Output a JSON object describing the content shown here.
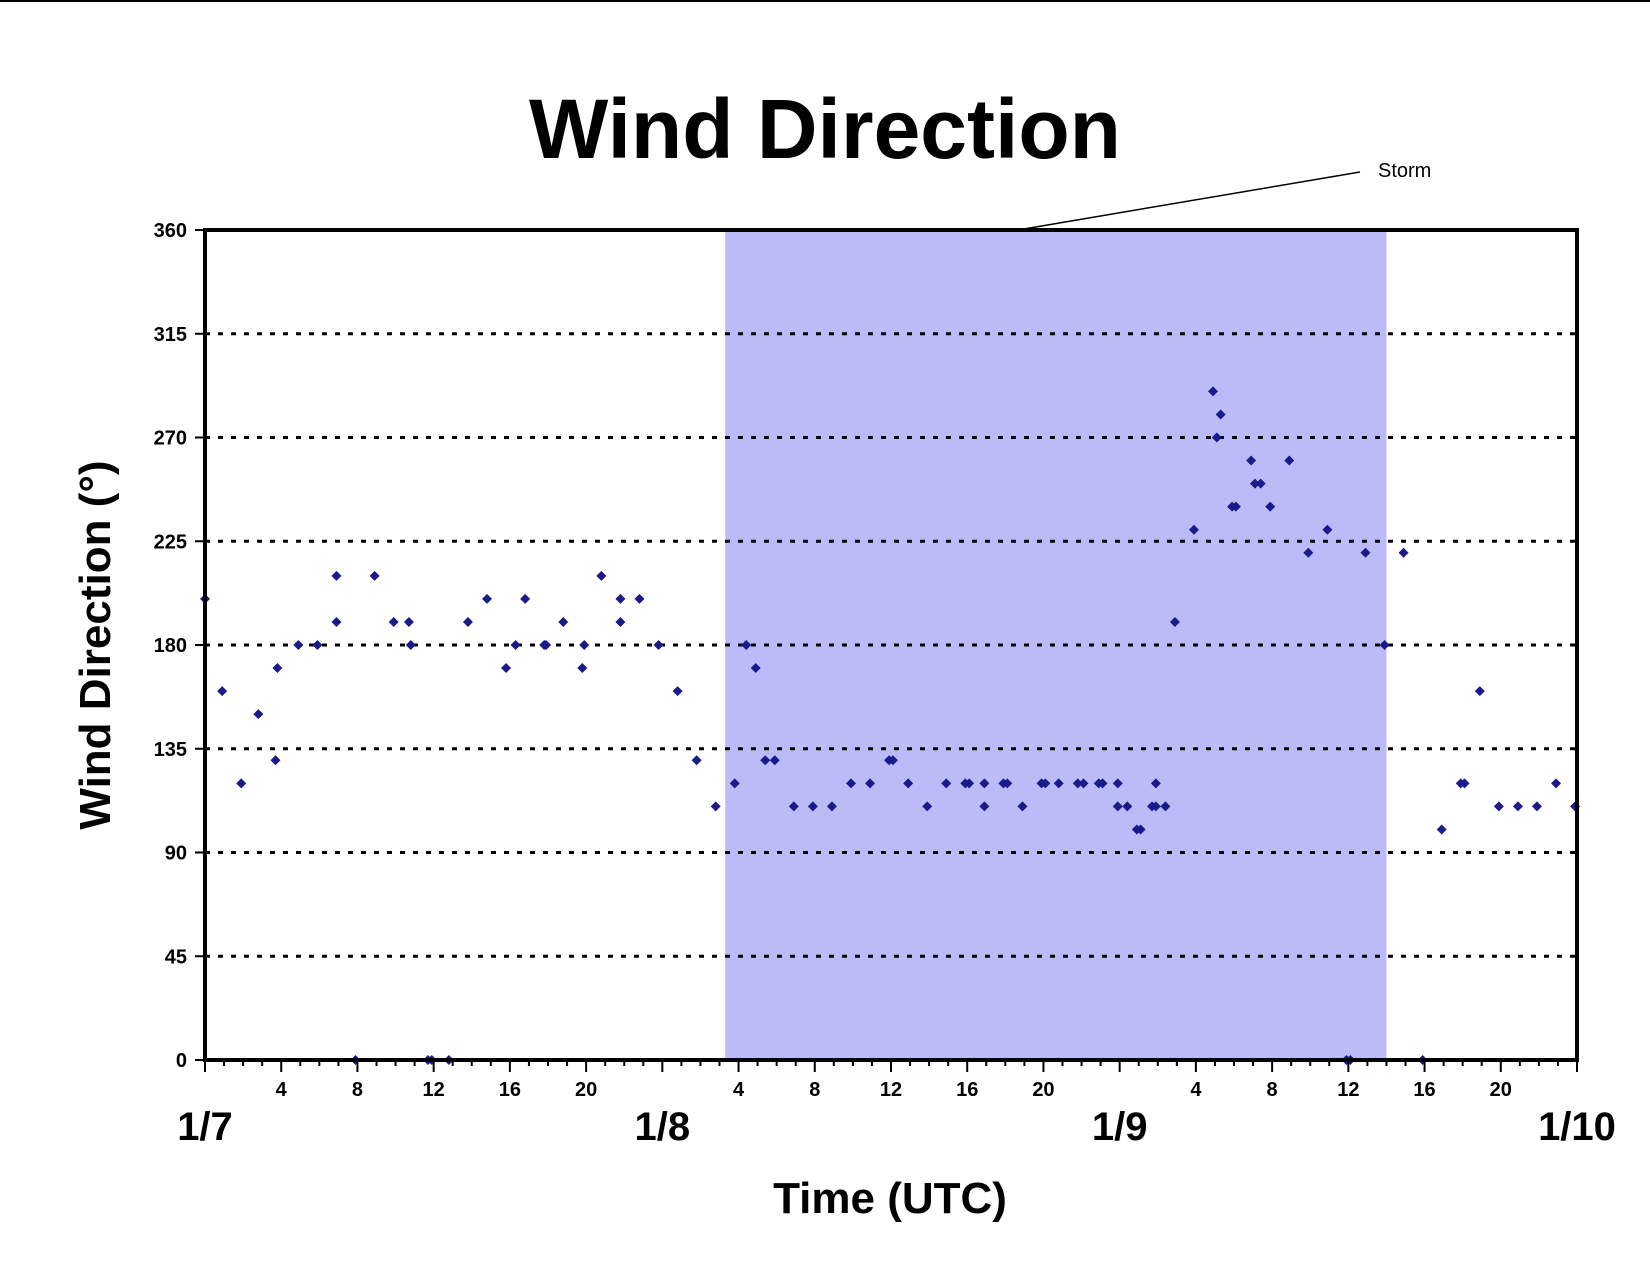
{
  "chart_data": {
    "type": "scatter",
    "title": "Wind Direction",
    "xlabel": "Time (UTC)",
    "ylabel": "Wind Direction (°)",
    "ylim": [
      0,
      360
    ],
    "xlim_hours": [
      0,
      72
    ],
    "y_ticks": [
      "0",
      "45",
      "90",
      "135",
      "180",
      "225",
      "270",
      "315",
      "360"
    ],
    "x_hour_ticks": [
      "4",
      "8",
      "12",
      "16",
      "20",
      "4",
      "8",
      "12",
      "16",
      "20",
      "4",
      "8",
      "12",
      "16",
      "20"
    ],
    "x_day_labels": [
      "1/7",
      "1/8",
      "1/9",
      "1/10"
    ],
    "grid": "horizontal dotted",
    "marker_color": "#1a1a8c",
    "shade_color": "#bbbbf8",
    "annotation": {
      "text": "Storm",
      "start_hour": 27.3,
      "end_hour": 62
    },
    "points": [
      [
        0,
        200
      ],
      [
        0.9,
        160
      ],
      [
        1.9,
        120
      ],
      [
        2.8,
        150
      ],
      [
        3.7,
        130
      ],
      [
        3.8,
        170
      ],
      [
        4.9,
        180
      ],
      [
        5.9,
        180
      ],
      [
        6.9,
        210
      ],
      [
        6.9,
        190
      ],
      [
        7.9,
        0
      ],
      [
        8.9,
        210
      ],
      [
        9.9,
        190
      ],
      [
        10.7,
        190
      ],
      [
        10.8,
        180
      ],
      [
        11.7,
        0
      ],
      [
        11.9,
        0
      ],
      [
        12.8,
        0
      ],
      [
        13.8,
        190
      ],
      [
        14.8,
        200
      ],
      [
        15.8,
        170
      ],
      [
        16.3,
        180
      ],
      [
        16.8,
        200
      ],
      [
        17.8,
        180
      ],
      [
        17.9,
        180
      ],
      [
        18.8,
        190
      ],
      [
        19.8,
        170
      ],
      [
        19.9,
        180
      ],
      [
        20.8,
        210
      ],
      [
        21.8,
        200
      ],
      [
        21.8,
        190
      ],
      [
        22.8,
        200
      ],
      [
        23.8,
        180
      ],
      [
        24.8,
        160
      ],
      [
        25.8,
        130
      ],
      [
        26.8,
        110
      ],
      [
        27.8,
        120
      ],
      [
        28.4,
        180
      ],
      [
        28.9,
        170
      ],
      [
        29.4,
        130
      ],
      [
        29.9,
        130
      ],
      [
        30.9,
        110
      ],
      [
        31.9,
        110
      ],
      [
        32.9,
        110
      ],
      [
        33.9,
        120
      ],
      [
        34.9,
        120
      ],
      [
        35.9,
        130
      ],
      [
        36.1,
        130
      ],
      [
        36.9,
        120
      ],
      [
        37.9,
        110
      ],
      [
        38.9,
        120
      ],
      [
        39.9,
        120
      ],
      [
        40.1,
        120
      ],
      [
        40.9,
        110
      ],
      [
        40.9,
        120
      ],
      [
        41.9,
        120
      ],
      [
        42.1,
        120
      ],
      [
        42.9,
        110
      ],
      [
        43.9,
        120
      ],
      [
        44.1,
        120
      ],
      [
        44.8,
        120
      ],
      [
        45.8,
        120
      ],
      [
        46.1,
        120
      ],
      [
        46.9,
        120
      ],
      [
        47.1,
        120
      ],
      [
        47.9,
        110
      ],
      [
        47.9,
        120
      ],
      [
        48.4,
        110
      ],
      [
        48.9,
        100
      ],
      [
        49.1,
        100
      ],
      [
        49.7,
        110
      ],
      [
        49.9,
        110
      ],
      [
        49.9,
        120
      ],
      [
        50.4,
        110
      ],
      [
        50.9,
        190
      ],
      [
        51.9,
        230
      ],
      [
        52.9,
        290
      ],
      [
        53.1,
        270
      ],
      [
        53.3,
        280
      ],
      [
        53.9,
        240
      ],
      [
        54.1,
        240
      ],
      [
        54.9,
        260
      ],
      [
        55.1,
        250
      ],
      [
        55.4,
        250
      ],
      [
        55.9,
        240
      ],
      [
        56.9,
        260
      ],
      [
        57.9,
        220
      ],
      [
        58.9,
        230
      ],
      [
        59.9,
        0
      ],
      [
        60.1,
        0
      ],
      [
        60.9,
        220
      ],
      [
        61.9,
        180
      ],
      [
        62.9,
        220
      ],
      [
        63.9,
        0
      ],
      [
        64.9,
        100
      ],
      [
        65.9,
        120
      ],
      [
        66.1,
        120
      ],
      [
        66.9,
        160
      ],
      [
        67.9,
        110
      ],
      [
        68.9,
        110
      ],
      [
        69.9,
        110
      ],
      [
        70.9,
        120
      ],
      [
        71.9,
        110
      ]
    ]
  }
}
